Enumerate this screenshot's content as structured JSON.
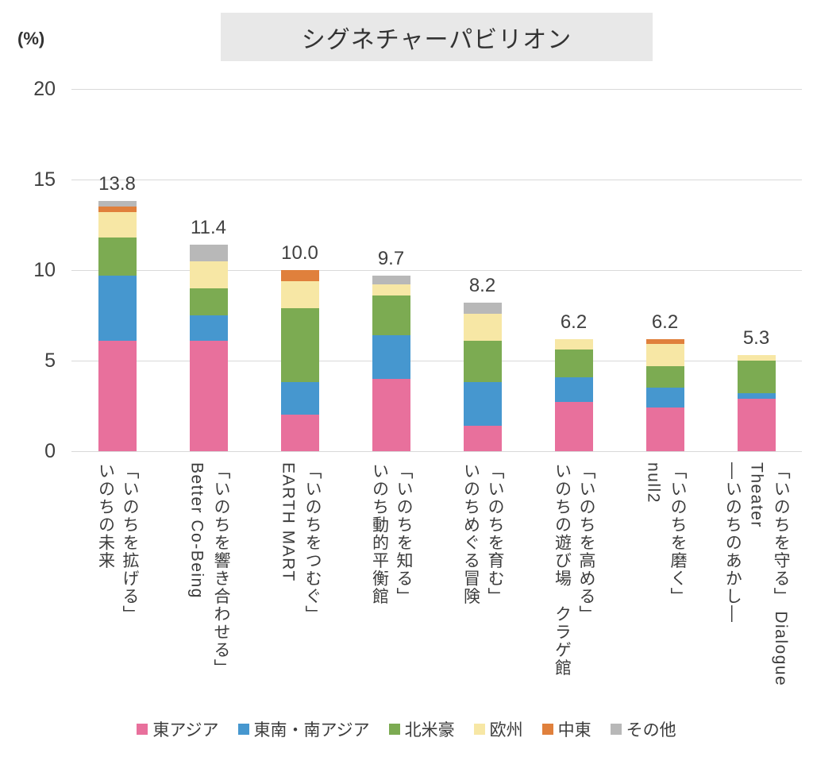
{
  "chart_data": {
    "type": "stacked-bar",
    "title": "シグネチャーパビリオン",
    "unit_label": "(%)",
    "ylabel": "(%)",
    "ylim": [
      0,
      20
    ],
    "y_ticks": [
      20,
      15,
      10,
      5,
      0
    ],
    "grid": true,
    "legend_position": "bottom",
    "series": [
      {
        "name": "東アジア",
        "color": "#e8709c"
      },
      {
        "name": "東南・南アジア",
        "color": "#4697cf"
      },
      {
        "name": "北米豪",
        "color": "#7cab52"
      },
      {
        "name": "欧州",
        "color": "#f7e7a5"
      },
      {
        "name": "中東",
        "color": "#e0803c"
      },
      {
        "name": "その他",
        "color": "#b8b8b8"
      }
    ],
    "bars": [
      {
        "label_lines": [
          "「いのちを拡げる」",
          "いのちの未来"
        ],
        "total_label": "13.8",
        "total": 13.8,
        "values": [
          6.1,
          3.6,
          2.1,
          1.4,
          0.3,
          0.3
        ]
      },
      {
        "label_lines": [
          "「いのちを響き合わせる」",
          "Better Co-Being"
        ],
        "total_label": "11.4",
        "total": 11.4,
        "values": [
          6.1,
          1.4,
          1.5,
          1.5,
          0,
          0.9
        ]
      },
      {
        "label_lines": [
          "「いのちをつむぐ」",
          "EARTH MART"
        ],
        "total_label": "10.0",
        "total": 10.0,
        "values": [
          2.0,
          1.8,
          4.1,
          1.5,
          0.6,
          0
        ]
      },
      {
        "label_lines": [
          "「いのちを知る」",
          "いのち動的平衡館"
        ],
        "total_label": "9.7",
        "total": 9.7,
        "values": [
          4.0,
          2.4,
          2.2,
          0.6,
          0,
          0.5
        ]
      },
      {
        "label_lines": [
          "「いのちを育む」",
          "いのちめぐる冒険"
        ],
        "total_label": "8.2",
        "total": 8.2,
        "values": [
          1.4,
          2.4,
          2.3,
          1.5,
          0,
          0.6
        ]
      },
      {
        "label_lines": [
          "「いのちを高める」",
          "いのちの遊び場　クラゲ館"
        ],
        "total_label": "6.2",
        "total": 6.2,
        "values": [
          2.7,
          1.4,
          1.5,
          0.6,
          0,
          0
        ]
      },
      {
        "label_lines": [
          "「いのちを磨く」",
          "null2"
        ],
        "total_label": "6.2",
        "total": 6.2,
        "values": [
          2.4,
          1.1,
          1.2,
          1.2,
          0.3,
          0
        ]
      },
      {
        "label_lines": [
          "「いのちを守る」 Dialogue",
          "Theater",
          "―いのちのあかし―"
        ],
        "total_label": "5.3",
        "total": 5.3,
        "values": [
          2.9,
          0.3,
          1.8,
          0.3,
          0,
          0
        ]
      }
    ],
    "colors": {
      "gridline": "#d9d9d9",
      "title_background": "#e8e8e8",
      "text": "#3c3c3c"
    }
  }
}
